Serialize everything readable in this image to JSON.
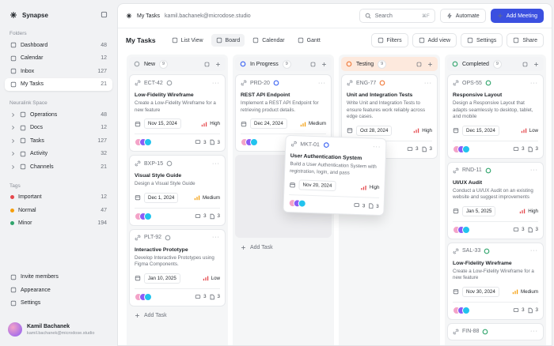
{
  "sidebar": {
    "app_name": "Synapse",
    "sections": [
      {
        "title": "Folders",
        "items": [
          {
            "label": "Dashboard",
            "count": 48
          },
          {
            "label": "Calendar",
            "count": 12
          },
          {
            "label": "Inbox",
            "count": 127
          },
          {
            "label": "My Tasks",
            "count": 21,
            "active": true
          }
        ]
      },
      {
        "title": "Neuralink Space",
        "items": [
          {
            "label": "Operations",
            "count": 48
          },
          {
            "label": "Docs",
            "count": 12
          },
          {
            "label": "Tasks",
            "count": 127
          },
          {
            "label": "Activity",
            "count": 32
          },
          {
            "label": "Channels",
            "count": 21
          }
        ]
      },
      {
        "title": "Tags",
        "items": [
          {
            "label": "Important",
            "count": 12,
            "color": "#e5484d"
          },
          {
            "label": "Normal",
            "count": 47,
            "color": "#f59e0b"
          },
          {
            "label": "Minor",
            "count": 194,
            "color": "#30a46c"
          }
        ]
      }
    ],
    "footer": [
      "Invite members",
      "Appearance",
      "Settings"
    ],
    "user": {
      "name": "Kamil Bachanek",
      "email": "kamil.bachanek@microdose.studio"
    }
  },
  "header": {
    "breadcrumb": "My Tasks",
    "workspace": "kamil.bachanek@microdose.studio",
    "search": "Search",
    "shortcut": "⌘F",
    "buttons": [
      "Automate",
      "Add Meeting"
    ]
  },
  "toolbar": {
    "title": "My Tasks",
    "views": [
      {
        "label": "List View"
      },
      {
        "label": "Board",
        "active": true
      },
      {
        "label": "Calendar"
      },
      {
        "label": "Gantt"
      }
    ],
    "actions": [
      "Filters",
      "Add view",
      "Settings",
      "Share"
    ]
  },
  "board": {
    "columns": [
      {
        "name": "New",
        "count": 9,
        "color": "#9aa0a6",
        "header_bg": "#f3f4f6",
        "add_task": "Add Task",
        "cards": [
          {
            "id": "ECT-42",
            "title": "Low-Fidelity Wireframe",
            "description": "Create a Low-Fidelity Wireframe for a new feature",
            "date": "Nov 15, 2024",
            "priority": "High",
            "priority_color": "#e5484d",
            "comments": 3,
            "files": 3
          },
          {
            "id": "BXP-15",
            "title": "Visual Style Guide",
            "description": "Design a Visual Style Guide",
            "date": "Dec 1, 2024",
            "priority": "Medium",
            "priority_color": "#f59e0b",
            "comments": 3,
            "files": 3
          },
          {
            "id": "PLT-92",
            "title": "Interactive Prototype",
            "description": "Develop Interactive Prototypes using Figma Components.",
            "date": "Jan 10, 2025",
            "priority": "Low",
            "priority_color": "#e5484d",
            "comments": 3,
            "files": 3
          }
        ]
      },
      {
        "name": "In Progress",
        "count": 9,
        "color": "#3b63f3",
        "header_bg": "#f3f4f6",
        "add_task": "Add Task",
        "drop_placeholder": true,
        "cards": [
          {
            "id": "PRD-20",
            "title": "REST API Endpoint",
            "description": "Implement a REST API Endpoint for retrieving product details.",
            "date": "Dec 24, 2024",
            "priority": "Medium",
            "priority_color": "#f59e0b",
            "comments": 3,
            "files": 3
          }
        ]
      },
      {
        "name": "Testing",
        "count": 9,
        "color": "#f07a3a",
        "header_bg": "#fde9dd",
        "cards": [
          {
            "id": "ENG-77",
            "title": "Unit and Integration Tests",
            "description": "Write Unit and Integration Tests to ensure features work reliably across edge cases.",
            "date": "Oct 28, 2024",
            "priority": "High",
            "priority_color": "#e5484d",
            "comments": 3,
            "files": 3
          }
        ]
      },
      {
        "name": "Completed",
        "count": 9,
        "color": "#30a46c",
        "header_bg": "#f3f4f6",
        "cards": [
          {
            "id": "OPS-55",
            "title": "Responsive Layout",
            "description": "Design a Responsive Layout that adapts seamlessly to desktop, tablet, and mobile",
            "date": "Dec 15, 2024",
            "priority": "Low",
            "priority_color": "#e5484d",
            "comments": 3,
            "files": 3
          },
          {
            "id": "RND-11",
            "title": "UI/UX Audit",
            "description": "Conduct a UI/UX Audit on an existing website and suggest improvements",
            "date": "Jan 5, 2025",
            "priority": "High",
            "priority_color": "#e5484d",
            "comments": 3,
            "files": 3
          },
          {
            "id": "SAL-33",
            "title": "Low-Fidelity Wireframe",
            "description": "Create a Low-Fidelity Wireframe for a new feature",
            "date": "Nov 30, 2024",
            "priority": "Medium",
            "priority_color": "#f59e0b",
            "comments": 3,
            "files": 3
          },
          {
            "id": "FIN-88"
          }
        ]
      }
    ],
    "dragging": {
      "id": "MKT-01",
      "title": "User Authentication System",
      "description": "Build a User Authentication System with registration, login, and pass",
      "date": "Nov 20, 2024",
      "priority": "High",
      "priority_color": "#e5484d",
      "comments": 3,
      "files": 3
    }
  }
}
